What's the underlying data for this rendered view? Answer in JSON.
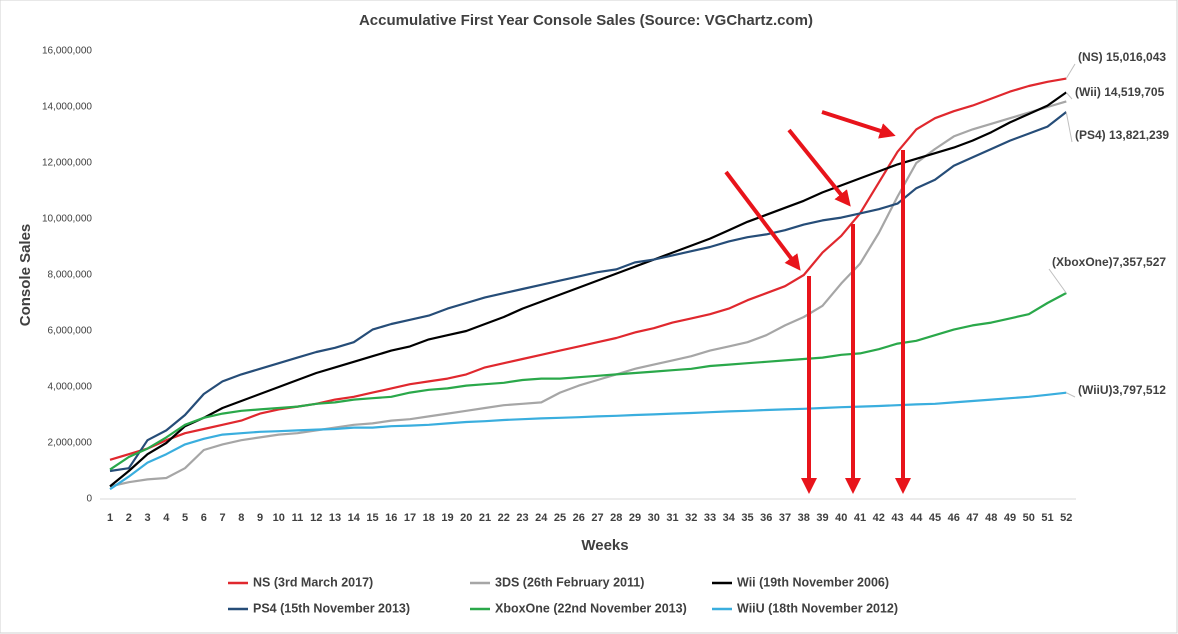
{
  "chart_data": {
    "type": "line",
    "title": "Accumulative First Year Console Sales (Source: VGChartz.com)",
    "x_label": "Weeks",
    "y_label": "Console Sales",
    "categories": [
      1,
      2,
      3,
      4,
      5,
      6,
      7,
      8,
      9,
      10,
      11,
      12,
      13,
      14,
      15,
      16,
      17,
      18,
      19,
      20,
      21,
      22,
      23,
      24,
      25,
      26,
      27,
      28,
      29,
      30,
      31,
      32,
      33,
      34,
      35,
      36,
      37,
      38,
      39,
      40,
      41,
      42,
      43,
      44,
      45,
      46,
      47,
      48,
      49,
      50,
      51,
      52
    ],
    "ylim": [
      0,
      16000000
    ],
    "yticks": [
      0,
      {
        "value": 2000000,
        "label": "2,000,000"
      },
      {
        "value": 4000000,
        "label": "4,000,000"
      },
      {
        "value": 6000000,
        "label": "6,000,000"
      },
      {
        "value": 8000000,
        "label": "8,000,000"
      },
      {
        "value": 10000000,
        "label": "10,000,000"
      },
      {
        "value": 12000000,
        "label": "12,000,000"
      },
      {
        "value": 14000000,
        "label": "14,000,000"
      },
      {
        "value": 16000000,
        "label": "16,000,000"
      }
    ],
    "grid": false,
    "legend": "bottom",
    "series": [
      {
        "name": "NS (3rd March 2017)",
        "color": "#e0282e",
        "values": [
          1400000,
          1600000,
          1800000,
          2100000,
          2350000,
          2500000,
          2650000,
          2800000,
          3050000,
          3200000,
          3300000,
          3400000,
          3550000,
          3650000,
          3800000,
          3950000,
          4100000,
          4200000,
          4300000,
          4450000,
          4700000,
          4850000,
          5000000,
          5150000,
          5300000,
          5450000,
          5600000,
          5750000,
          5950000,
          6100000,
          6300000,
          6450000,
          6600000,
          6800000,
          7100000,
          7350000,
          7600000,
          8000000,
          8800000,
          9400000,
          10200000,
          11300000,
          12400000,
          13200000,
          13600000,
          13850000,
          14050000,
          14300000,
          14550000,
          14750000,
          14900000,
          15016043
        ],
        "value_labels": [
          null,
          null,
          null,
          null,
          null,
          null,
          null,
          null,
          null,
          null,
          null,
          null,
          null,
          null,
          null,
          null,
          null,
          null,
          null,
          null,
          null,
          null,
          null,
          null,
          null,
          null,
          null,
          null,
          null,
          null,
          null,
          null,
          null,
          null,
          null,
          null,
          null,
          null,
          null,
          null,
          null,
          null,
          null,
          null,
          null,
          null,
          null,
          null,
          null,
          null,
          null,
          "(NS) 15,016,043"
        ]
      },
      {
        "name": "3DS (26th February 2011)",
        "color": "#a6a6a6",
        "values": [
          450000,
          600000,
          700000,
          750000,
          1100000,
          1750000,
          1950000,
          2100000,
          2200000,
          2300000,
          2350000,
          2450000,
          2550000,
          2650000,
          2700000,
          2800000,
          2850000,
          2950000,
          3050000,
          3150000,
          3250000,
          3350000,
          3400000,
          3450000,
          3800000,
          4050000,
          4250000,
          4450000,
          4650000,
          4800000,
          4950000,
          5100000,
          5300000,
          5450000,
          5600000,
          5850000,
          6200000,
          6500000,
          6900000,
          7700000,
          8400000,
          9500000,
          10800000,
          12000000,
          12500000,
          12950000,
          13200000,
          13400000,
          13600000,
          13800000,
          14000000,
          14200000
        ]
      },
      {
        "name": "Wii (19th November 2006)",
        "color": "#000000",
        "values": [
          450000,
          1000000,
          1600000,
          2000000,
          2600000,
          2900000,
          3250000,
          3500000,
          3750000,
          4000000,
          4250000,
          4500000,
          4700000,
          4900000,
          5100000,
          5300000,
          5450000,
          5700000,
          5850000,
          6000000,
          6250000,
          6500000,
          6800000,
          7050000,
          7300000,
          7550000,
          7800000,
          8050000,
          8300000,
          8550000,
          8800000,
          9050000,
          9300000,
          9600000,
          9900000,
          10150000,
          10400000,
          10650000,
          10950000,
          11200000,
          11450000,
          11700000,
          11950000,
          12150000,
          12350000,
          12550000,
          12800000,
          13100000,
          13450000,
          13750000,
          14050000,
          14519705
        ],
        "value_labels": [
          null,
          null,
          null,
          null,
          null,
          null,
          null,
          null,
          null,
          null,
          null,
          null,
          null,
          null,
          null,
          null,
          null,
          null,
          null,
          null,
          null,
          null,
          null,
          null,
          null,
          null,
          null,
          null,
          null,
          null,
          null,
          null,
          null,
          null,
          null,
          null,
          null,
          null,
          null,
          null,
          null,
          null,
          null,
          null,
          null,
          null,
          null,
          null,
          null,
          null,
          null,
          "(Wii) 14,519,705"
        ]
      },
      {
        "name": "PS4 (15th November 2013)",
        "color": "#264d78",
        "values": [
          1000000,
          1100000,
          2100000,
          2450000,
          3000000,
          3750000,
          4200000,
          4450000,
          4650000,
          4850000,
          5050000,
          5250000,
          5400000,
          5600000,
          6050000,
          6250000,
          6400000,
          6550000,
          6800000,
          7000000,
          7200000,
          7350000,
          7500000,
          7650000,
          7800000,
          7950000,
          8100000,
          8200000,
          8450000,
          8550000,
          8700000,
          8850000,
          9000000,
          9200000,
          9350000,
          9450000,
          9600000,
          9800000,
          9950000,
          10050000,
          10200000,
          10350000,
          10550000,
          11100000,
          11400000,
          11900000,
          12200000,
          12500000,
          12800000,
          13050000,
          13300000,
          13821239
        ],
        "value_labels": [
          null,
          null,
          null,
          null,
          null,
          null,
          null,
          null,
          null,
          null,
          null,
          null,
          null,
          null,
          null,
          null,
          null,
          null,
          null,
          null,
          null,
          null,
          null,
          null,
          null,
          null,
          null,
          null,
          null,
          null,
          null,
          null,
          null,
          null,
          null,
          null,
          null,
          null,
          null,
          null,
          null,
          null,
          null,
          null,
          null,
          null,
          null,
          null,
          null,
          null,
          null,
          "(PS4) 13,821,239"
        ]
      },
      {
        "name": "XboxOne (22nd November 2013)",
        "color": "#2aa84a",
        "values": [
          1050000,
          1500000,
          1800000,
          2200000,
          2650000,
          2900000,
          3050000,
          3150000,
          3200000,
          3250000,
          3300000,
          3400000,
          3450000,
          3550000,
          3600000,
          3650000,
          3800000,
          3900000,
          3950000,
          4050000,
          4100000,
          4150000,
          4250000,
          4300000,
          4300000,
          4350000,
          4400000,
          4450000,
          4500000,
          4550000,
          4600000,
          4650000,
          4750000,
          4800000,
          4850000,
          4900000,
          4950000,
          5000000,
          5050000,
          5150000,
          5200000,
          5350000,
          5550000,
          5650000,
          5850000,
          6050000,
          6200000,
          6300000,
          6450000,
          6600000,
          7000000,
          7357527
        ],
        "value_labels": [
          null,
          null,
          null,
          null,
          null,
          null,
          null,
          null,
          null,
          null,
          null,
          null,
          null,
          null,
          null,
          null,
          null,
          null,
          null,
          null,
          null,
          null,
          null,
          null,
          null,
          null,
          null,
          null,
          null,
          null,
          null,
          null,
          null,
          null,
          null,
          null,
          null,
          null,
          null,
          null,
          null,
          null,
          null,
          null,
          null,
          null,
          null,
          null,
          null,
          null,
          null,
          "(XboxOne)7,357,527"
        ]
      },
      {
        "name": "WiiU (18th November 2012)",
        "color": "#3aaede",
        "values": [
          350000,
          800000,
          1300000,
          1600000,
          1950000,
          2150000,
          2300000,
          2350000,
          2400000,
          2420000,
          2450000,
          2480000,
          2500000,
          2550000,
          2550000,
          2600000,
          2620000,
          2650000,
          2700000,
          2750000,
          2780000,
          2820000,
          2850000,
          2880000,
          2900000,
          2920000,
          2950000,
          2970000,
          3000000,
          3020000,
          3050000,
          3070000,
          3100000,
          3130000,
          3150000,
          3180000,
          3200000,
          3220000,
          3250000,
          3280000,
          3300000,
          3320000,
          3350000,
          3380000,
          3400000,
          3450000,
          3500000,
          3550000,
          3600000,
          3650000,
          3720000,
          3797512
        ],
        "value_labels": [
          null,
          null,
          null,
          null,
          null,
          null,
          null,
          null,
          null,
          null,
          null,
          null,
          null,
          null,
          null,
          null,
          null,
          null,
          null,
          null,
          null,
          null,
          null,
          null,
          null,
          null,
          null,
          null,
          null,
          null,
          null,
          null,
          null,
          null,
          null,
          null,
          null,
          null,
          null,
          null,
          null,
          null,
          null,
          null,
          null,
          null,
          null,
          null,
          null,
          null,
          null,
          "(WiiU)3,797,512"
        ]
      }
    ]
  }
}
